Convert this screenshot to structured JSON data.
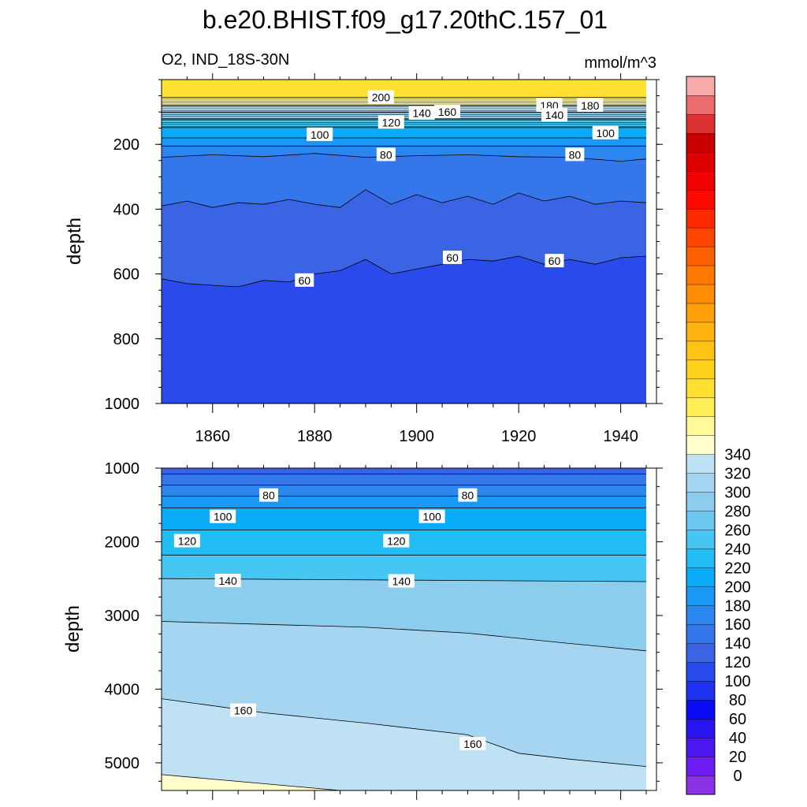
{
  "title": "b.e20.BHIST.f09_g17.20thC.157_01",
  "variable_label": "O2, IND_18S-30N",
  "units": "mmol/m^3",
  "chart_data": [
    {
      "type": "heatmap",
      "panel": "upper",
      "ylabel": "depth",
      "x_ticks": [
        1860,
        1880,
        1900,
        1920,
        1940
      ],
      "xlim": [
        1850,
        1945
      ],
      "y_ticks": [
        200,
        400,
        600,
        800,
        1000
      ],
      "ylim": [
        0,
        1000
      ],
      "y_reversed": true,
      "contour_interval": 10,
      "isolines": [
        {
          "level": 200,
          "x": [
            1850,
            1945
          ],
          "depth": [
            55,
            55
          ]
        },
        {
          "level": 180,
          "x": [
            1850,
            1945
          ],
          "depth": [
            80,
            80
          ]
        },
        {
          "level": 160,
          "x": [
            1850,
            1945
          ],
          "depth": [
            100,
            100
          ]
        },
        {
          "level": 140,
          "x": [
            1850,
            1945
          ],
          "depth": [
            122,
            122
          ]
        },
        {
          "level": 120,
          "x": [
            1850,
            1945
          ],
          "depth": [
            148,
            148
          ]
        },
        {
          "level": 100,
          "x": [
            1850,
            1945
          ],
          "depth": [
            180,
            180
          ]
        },
        {
          "level": 90,
          "x": [
            1850,
            1945
          ],
          "depth": [
            205,
            205
          ]
        },
        {
          "level": 80,
          "x": [
            1850,
            1860,
            1870,
            1880,
            1890,
            1900,
            1910,
            1920,
            1930,
            1940,
            1945
          ],
          "depth": [
            240,
            232,
            238,
            228,
            240,
            235,
            232,
            238,
            240,
            252,
            245
          ]
        },
        {
          "level": 70,
          "x": [
            1850,
            1855,
            1860,
            1865,
            1870,
            1875,
            1880,
            1885,
            1890,
            1895,
            1900,
            1905,
            1910,
            1915,
            1920,
            1925,
            1930,
            1935,
            1940,
            1945
          ],
          "depth": [
            390,
            375,
            395,
            380,
            385,
            370,
            385,
            395,
            340,
            385,
            355,
            380,
            360,
            385,
            350,
            375,
            360,
            385,
            375,
            380
          ]
        },
        {
          "level": 60,
          "x": [
            1850,
            1855,
            1860,
            1865,
            1870,
            1875,
            1880,
            1885,
            1890,
            1895,
            1900,
            1905,
            1910,
            1915,
            1920,
            1925,
            1930,
            1935,
            1940,
            1945
          ],
          "depth": [
            615,
            630,
            635,
            640,
            620,
            625,
            600,
            590,
            555,
            600,
            585,
            570,
            555,
            560,
            545,
            570,
            555,
            570,
            550,
            545
          ]
        }
      ],
      "contour_labels": [
        {
          "text": "200",
          "x": 1893,
          "depth": 55
        },
        {
          "text": "180",
          "x": 1926,
          "depth": 80
        },
        {
          "text": "180",
          "x": 1934,
          "depth": 80
        },
        {
          "text": "160",
          "x": 1906,
          "depth": 100
        },
        {
          "text": "140",
          "x": 1901,
          "depth": 104
        },
        {
          "text": "140",
          "x": 1927,
          "depth": 110
        },
        {
          "text": "120",
          "x": 1895,
          "depth": 132
        },
        {
          "text": "100",
          "x": 1881,
          "depth": 170
        },
        {
          "text": "100",
          "x": 1937,
          "depth": 165
        },
        {
          "text": "80",
          "x": 1894,
          "depth": 232
        },
        {
          "text": "80",
          "x": 1931,
          "depth": 232
        },
        {
          "text": "60",
          "x": 1878,
          "depth": 620
        },
        {
          "text": "60",
          "x": 1907,
          "depth": 550
        },
        {
          "text": "60",
          "x": 1927,
          "depth": 560
        }
      ]
    },
    {
      "type": "heatmap",
      "panel": "lower",
      "ylabel": "depth",
      "xlim": [
        1850,
        1945
      ],
      "y_ticks": [
        1000,
        2000,
        3000,
        4000,
        5000
      ],
      "ylim": [
        1000,
        5375
      ],
      "y_reversed": true,
      "contour_interval": 10,
      "isolines": [
        {
          "level": 70,
          "x": [
            1850,
            1945
          ],
          "depth": [
            1080,
            1080
          ]
        },
        {
          "level": 80,
          "x": [
            1850,
            1945
          ],
          "depth": [
            1230,
            1230
          ]
        },
        {
          "level": 90,
          "x": [
            1850,
            1945
          ],
          "depth": [
            1380,
            1380
          ]
        },
        {
          "level": 100,
          "x": [
            1850,
            1945
          ],
          "depth": [
            1540,
            1540
          ]
        },
        {
          "level": 110,
          "x": [
            1850,
            1945
          ],
          "depth": [
            1840,
            1840
          ]
        },
        {
          "level": 120,
          "x": [
            1850,
            1945
          ],
          "depth": [
            2180,
            2180
          ]
        },
        {
          "level": 130,
          "x": [
            1850,
            1945
          ],
          "depth": [
            2500,
            2540
          ]
        },
        {
          "level": 150,
          "x": [
            1850,
            1870,
            1890,
            1910,
            1930,
            1945
          ],
          "depth": [
            3080,
            3120,
            3160,
            3240,
            3380,
            3480
          ]
        },
        {
          "level": 160,
          "x": [
            1850,
            1870,
            1890,
            1910,
            1920,
            1930,
            1945
          ],
          "depth": [
            4130,
            4320,
            4460,
            4620,
            4870,
            4950,
            5050
          ]
        },
        {
          "level": 170,
          "x": [
            1850,
            1885
          ],
          "depth": [
            5160,
            5375
          ]
        }
      ],
      "contour_labels": [
        {
          "text": "80",
          "x": 1871,
          "depth": 1370
        },
        {
          "text": "80",
          "x": 1910,
          "depth": 1370
        },
        {
          "text": "100",
          "x": 1862,
          "depth": 1660
        },
        {
          "text": "100",
          "x": 1903,
          "depth": 1660
        },
        {
          "text": "120",
          "x": 1855,
          "depth": 1990
        },
        {
          "text": "120",
          "x": 1896,
          "depth": 1990
        },
        {
          "text": "140",
          "x": 1863,
          "depth": 2530
        },
        {
          "text": "140",
          "x": 1897,
          "depth": 2535
        },
        {
          "text": "160",
          "x": 1866,
          "depth": 4290
        },
        {
          "text": "160",
          "x": 1911,
          "depth": 4745
        }
      ]
    }
  ],
  "colorbar": {
    "labels": [
      "0",
      "20",
      "40",
      "60",
      "80",
      "100",
      "120",
      "140",
      "160",
      "180",
      "200",
      "220",
      "240",
      "260",
      "280",
      "300",
      "320",
      "340"
    ],
    "levels": [
      -10,
      0,
      10,
      20,
      30,
      40,
      50,
      60,
      70,
      80,
      90,
      100,
      110,
      120,
      130,
      140,
      150,
      160,
      170,
      180,
      190,
      200,
      210,
      220,
      230,
      240,
      250,
      260,
      270,
      280,
      290,
      300,
      310,
      320,
      330,
      340,
      350,
      360
    ],
    "colors": [
      "#8C32E6",
      "#6E1EF0",
      "#4B19F0",
      "#2814F0",
      "#0A0AF5",
      "#1E32F0",
      "#2A4AEC",
      "#3B64E4",
      "#3676EB",
      "#2B86F0",
      "#1A98F5",
      "#0AABF8",
      "#22BDF5",
      "#45C6F3",
      "#6BC8EF",
      "#8CCDEE",
      "#A5D5F0",
      "#BEE2F4",
      "#FFFECC",
      "#FFF99A",
      "#FFEE55",
      "#FFE033",
      "#FFD21E",
      "#FFC314",
      "#FFB30F",
      "#FFA00A",
      "#FF8C05",
      "#FF7800",
      "#FF6000",
      "#FF4600",
      "#FF2A00",
      "#FF0A00",
      "#F00000",
      "#DC0000",
      "#C80000",
      "#DC3232",
      "#EB6E6E",
      "#F7AAAA"
    ]
  }
}
